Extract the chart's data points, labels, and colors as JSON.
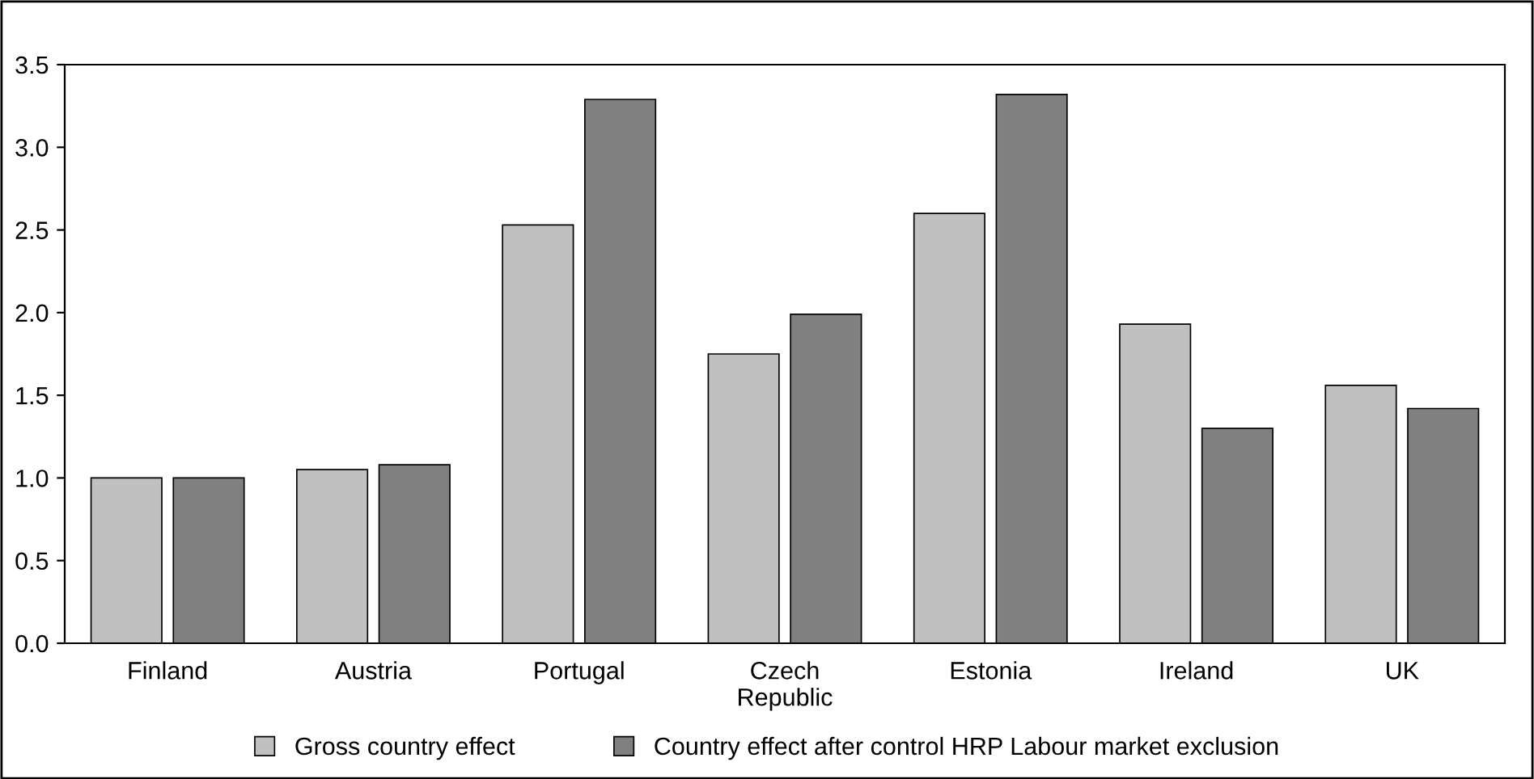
{
  "chart_data": {
    "type": "bar",
    "categories": [
      "Finland",
      "Austria",
      "Portugal",
      "Czech\nRepublic",
      "Estonia",
      "Ireland",
      "UK"
    ],
    "series": [
      {
        "name": "Gross country effect",
        "color": "#c0c0c0",
        "values": [
          1.0,
          1.05,
          2.53,
          1.75,
          2.6,
          1.93,
          1.56
        ]
      },
      {
        "name": "Country effect after control HRP Labour market exclusion",
        "color": "#808080",
        "values": [
          1.0,
          1.08,
          3.29,
          1.99,
          3.32,
          1.3,
          1.42
        ]
      }
    ],
    "ylim": [
      0,
      3.5
    ],
    "yticks": [
      {
        "value": 0,
        "label": "0.0"
      },
      {
        "value": 0.5,
        "label": "0.5"
      },
      {
        "value": 1,
        "label": "1.0"
      },
      {
        "value": 1.5,
        "label": "1.5"
      },
      {
        "value": 2,
        "label": "2.0"
      },
      {
        "value": 2.5,
        "label": "2.5"
      },
      {
        "value": 3,
        "label": "3.0"
      },
      {
        "value": 3.5,
        "label": "3.5"
      }
    ],
    "grid": false,
    "legend": "bottom"
  }
}
